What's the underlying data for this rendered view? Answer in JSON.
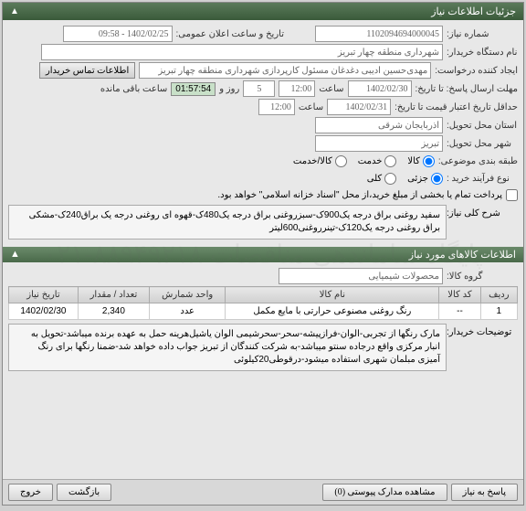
{
  "header": {
    "title": "جزئیات اطلاعات نیاز",
    "collapse": "▲"
  },
  "form": {
    "need_number_label": "شماره نیاز:",
    "need_number": "1102094694000045",
    "announce_label": "تاریخ و ساعت اعلان عمومی:",
    "announce_val": "1402/02/25 - 09:58",
    "buyer_org_label": "نام دستگاه خریدار:",
    "buyer_org": "شهرداری منطقه چهار تبریز",
    "creator_label": "ایجاد کننده درخواست:",
    "creator": "مهدی‌حسین ادیبی دغدغان مسئول کارپردازی شهرداری منطقه چهار تبریز",
    "contact_btn": "اطلاعات تماس خریدار",
    "deadline_label": "مهلت ارسال پاسخ: تا تاریخ:",
    "deadline_date": "1402/02/30",
    "time_label": "ساعت",
    "deadline_time": "12:00",
    "days_left": "5",
    "days_label": "روز و",
    "timer": "01:57:54",
    "remaining": "ساعت باقی مانده",
    "validity_label": "حداقل تاریخ اعتبار قیمت تا تاریخ:",
    "validity_date": "1402/02/31",
    "validity_time": "12:00",
    "province_label": "استان محل تحویل:",
    "province": "آذربایجان شرقی",
    "city_label": "شهر محل تحویل:",
    "city": "تبریز",
    "category_label": "طبقه بندی موضوعی:",
    "cat_goods": "کالا",
    "cat_service": "خدمت",
    "cat_both": "کالا/خدمت",
    "purchase_type_label": "نوع فرآیند خرید :",
    "pt_partial": "جزئی",
    "pt_total": "کلی",
    "payment_note": "پرداخت تمام یا بخشی از مبلغ خرید،از محل \"اسناد خزانه اسلامی\" خواهد بود.",
    "need_title_label": "شرح کلی نیاز:",
    "need_title": "سفید روغنی براق درجه یک900ک-سبزروغنی براق درجه یک480ک-قهوه ای روغنی درجه یک براق240ک-مشکی براق روغنی درجه یک120ک-تینرروغنی600لیتر"
  },
  "items_header": {
    "title": "اطلاعات کالاهای مورد نیاز",
    "collapse": "▲"
  },
  "category_row": {
    "label": "گروه کالا:",
    "value": "محصولات شیمیایی"
  },
  "table": {
    "headers": [
      "ردیف",
      "کد کالا",
      "نام کالا",
      "واحد شمارش",
      "تعداد / مقدار",
      "تاریخ نیاز"
    ],
    "rows": [
      [
        "1",
        "--",
        "رنگ روغنی مصنوعی حرارتی با مایع مکمل",
        "عدد",
        "2,340",
        "1402/02/30"
      ]
    ]
  },
  "buyer_notes": {
    "label": "توضیحات خریدار:",
    "content": "مارک رنگها از تجربی-الوان-فرازپیشه-سحر-سحرشیمی الوان یاشیل‌هرینه حمل به عهده برنده میباشد-تحویل به انبار مرکزی واقع درجاده سنتو میباشد-به شرکت کنندگان از تبریز جواب داده خواهد شد-ضمنا رنگها برای رنگ آمیزی مبلمان شهری استفاده میشود-درقوطی20کیلوئی"
  },
  "bottom": {
    "reply_btn": "پاسخ به نیاز",
    "attachments_btn": "مشاهده مدارک پیوستی (0)",
    "back_btn": "بازگشت",
    "exit_btn": "خروج"
  },
  "watermark": "پایگاه ساماندهی مناقصات ۸۸۹۴۹۲۱۸-۰۲۱"
}
